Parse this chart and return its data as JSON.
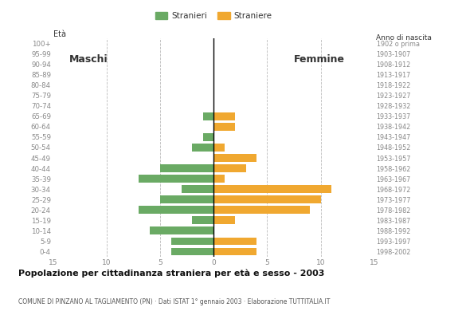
{
  "age_groups": [
    "100+",
    "95-99",
    "90-94",
    "85-89",
    "80-84",
    "75-79",
    "70-74",
    "65-69",
    "60-64",
    "55-59",
    "50-54",
    "45-49",
    "40-44",
    "35-39",
    "30-34",
    "25-29",
    "20-24",
    "15-19",
    "10-14",
    "5-9",
    "0-4"
  ],
  "birth_years": [
    "1902 o prima",
    "1903-1907",
    "1908-1912",
    "1913-1917",
    "1918-1922",
    "1923-1927",
    "1928-1932",
    "1933-1937",
    "1938-1942",
    "1943-1947",
    "1948-1952",
    "1953-1957",
    "1958-1962",
    "1963-1967",
    "1968-1972",
    "1973-1977",
    "1978-1982",
    "1983-1987",
    "1988-1992",
    "1993-1997",
    "1998-2002"
  ],
  "males": [
    0,
    0,
    0,
    0,
    0,
    0,
    0,
    1,
    0,
    1,
    2,
    0,
    5,
    7,
    3,
    5,
    7,
    2,
    6,
    4,
    4
  ],
  "females": [
    0,
    0,
    0,
    0,
    0,
    0,
    0,
    2,
    2,
    0,
    1,
    4,
    3,
    1,
    11,
    10,
    9,
    2,
    0,
    4,
    4
  ],
  "male_color": "#6aaa64",
  "female_color": "#f0a830",
  "title": "Popolazione per cittadinanza straniera per età e sesso - 2003",
  "subtitle": "COMUNE DI PINZANO AL TAGLIAMENTO (PN) · Dati ISTAT 1° gennaio 2003 · Elaborazione TUTTITALIA.IT",
  "legend_male": "Stranieri",
  "legend_female": "Straniere",
  "label_eta": "Età",
  "label_maschi": "Maschi",
  "label_femmine": "Femmine",
  "label_anno": "Anno di nascita",
  "xlim": 15,
  "background_color": "#ffffff",
  "grid_color": "#bbbbbb",
  "tick_color": "#888888",
  "bar_height": 0.75
}
